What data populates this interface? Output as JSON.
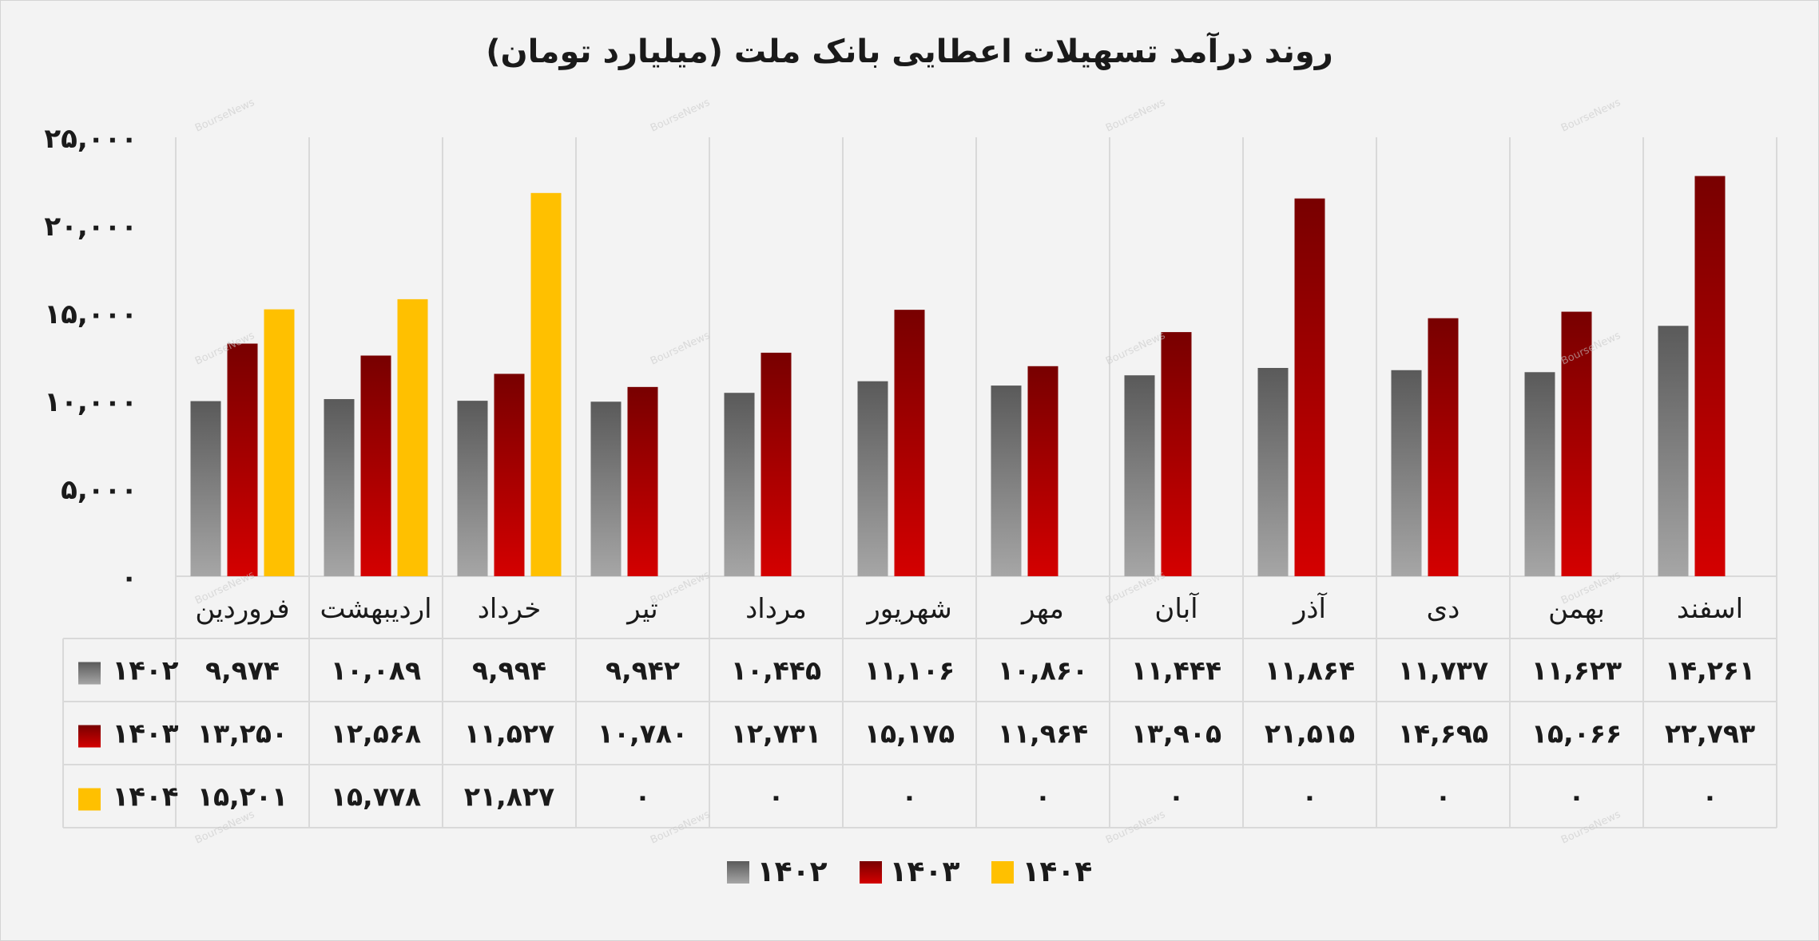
{
  "chart_data": {
    "type": "bar",
    "title": "روند درآمد تسهیلات اعطایی بانک ملت (میلیارد تومان)",
    "ylim": [
      0,
      25000
    ],
    "y_ticks": [
      "۰",
      "۵,۰۰۰",
      "۱۰,۰۰۰",
      "۱۵,۰۰۰",
      "۲۰,۰۰۰",
      "۲۵,۰۰۰"
    ],
    "y_tick_values": [
      0,
      5000,
      10000,
      15000,
      20000,
      25000
    ],
    "grid": true,
    "legend": "bottom",
    "watermark": "BourseNews",
    "categories": [
      "فروردین",
      "اردیبهشت",
      "خرداد",
      "تیر",
      "مرداد",
      "شهریور",
      "مهر",
      "آبان",
      "آذر",
      "دی",
      "بهمن",
      "اسفند"
    ],
    "series": [
      {
        "name": "۱۴۰۲",
        "color_top": "#5a5a5a",
        "color_bottom": "#a6a6a6",
        "values": [
          9974,
          10089,
          9994,
          9942,
          10445,
          11106,
          10860,
          11444,
          11864,
          11737,
          11623,
          14261
        ],
        "labels": [
          "۹,۹۷۴",
          "۱۰,۰۸۹",
          "۹,۹۹۴",
          "۹,۹۴۲",
          "۱۰,۴۴۵",
          "۱۱,۱۰۶",
          "۱۰,۸۶۰",
          "۱۱,۴۴۴",
          "۱۱,۸۶۴",
          "۱۱,۷۳۷",
          "۱۱,۶۲۳",
          "۱۴,۲۶۱"
        ]
      },
      {
        "name": "۱۴۰۳",
        "color_top": "#780000",
        "color_bottom": "#d40000",
        "values": [
          13250,
          12568,
          11527,
          10780,
          12731,
          15175,
          11964,
          13905,
          21515,
          14695,
          15066,
          22793
        ],
        "labels": [
          "۱۳,۲۵۰",
          "۱۲,۵۶۸",
          "۱۱,۵۲۷",
          "۱۰,۷۸۰",
          "۱۲,۷۳۱",
          "۱۵,۱۷۵",
          "۱۱,۹۶۴",
          "۱۳,۹۰۵",
          "۲۱,۵۱۵",
          "۱۴,۶۹۵",
          "۱۵,۰۶۶",
          "۲۲,۷۹۳"
        ]
      },
      {
        "name": "۱۴۰۴",
        "color_top": "#ffc000",
        "color_bottom": "#ffc000",
        "values": [
          15201,
          15778,
          21827,
          0,
          0,
          0,
          0,
          0,
          0,
          0,
          0,
          0
        ],
        "labels": [
          "۱۵,۲۰۱",
          "۱۵,۷۷۸",
          "۲۱,۸۲۷",
          "۰",
          "۰",
          "۰",
          "۰",
          "۰",
          "۰",
          "۰",
          "۰",
          "۰"
        ]
      }
    ]
  }
}
